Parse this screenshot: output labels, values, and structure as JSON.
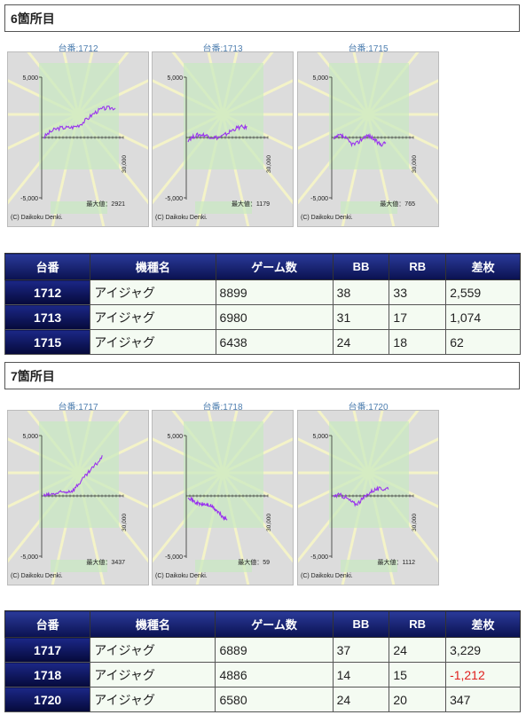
{
  "sections": [
    {
      "title": "6箇所目",
      "charts": [
        {
          "caption": "台番:1712",
          "y_top": "5,000",
          "y_bottom": "-5,000",
          "x_label": "30,000",
          "max_label": "最大値：2921",
          "copyright": "(C) Daikoku Denki.",
          "shape": "up"
        },
        {
          "caption": "台番:1713",
          "y_top": "5,000",
          "y_bottom": "-5,000",
          "x_label": "30,000",
          "max_label": "最大値：1179",
          "copyright": "(C) Daikoku Denki.",
          "shape": "flatup"
        },
        {
          "caption": "台番:1715",
          "y_top": "5,000",
          "y_bottom": "-5,000",
          "x_label": "30,000",
          "max_label": "最大値：765",
          "copyright": "(C) Daikoku Denki.",
          "shape": "flat"
        }
      ],
      "table": {
        "headers": [
          "台番",
          "機種名",
          "ゲーム数",
          "BB",
          "RB",
          "差枚"
        ],
        "rows": [
          [
            "1712",
            "アイジャグ",
            "8899",
            "38",
            "33",
            "2,559"
          ],
          [
            "1713",
            "アイジャグ",
            "6980",
            "31",
            "17",
            "1,074"
          ],
          [
            "1715",
            "アイジャグ",
            "6438",
            "24",
            "18",
            "62"
          ]
        ]
      }
    },
    {
      "title": "7箇所目",
      "charts": [
        {
          "caption": "台番:1717",
          "y_top": "5,000",
          "y_bottom": "-5,000",
          "x_label": "30,000",
          "max_label": "最大値：3437",
          "copyright": "(C) Daikoku Denki.",
          "shape": "upstrong"
        },
        {
          "caption": "台番:1718",
          "y_top": "5,000",
          "y_bottom": "-5,000",
          "x_label": "30,000",
          "max_label": "最大値：59",
          "copyright": "(C) Daikoku Denki.",
          "shape": "down"
        },
        {
          "caption": "台番:1720",
          "y_top": "5,000",
          "y_bottom": "-5,000",
          "x_label": "30,000",
          "max_label": "最大値：1112",
          "copyright": "(C) Daikoku Denki.",
          "shape": "mid"
        }
      ],
      "table": {
        "headers": [
          "台番",
          "機種名",
          "ゲーム数",
          "BB",
          "RB",
          "差枚"
        ],
        "rows": [
          [
            "1717",
            "アイジャグ",
            "6889",
            "37",
            "24",
            "3,229"
          ],
          [
            "1718",
            "アイジャグ",
            "4886",
            "14",
            "15",
            "-1,212"
          ],
          [
            "1720",
            "アイジャグ",
            "6580",
            "24",
            "20",
            "347"
          ]
        ]
      }
    }
  ],
  "colors": {
    "line": "#9933ee",
    "header_bg": "#0a1150",
    "negative": "#e0201e"
  }
}
